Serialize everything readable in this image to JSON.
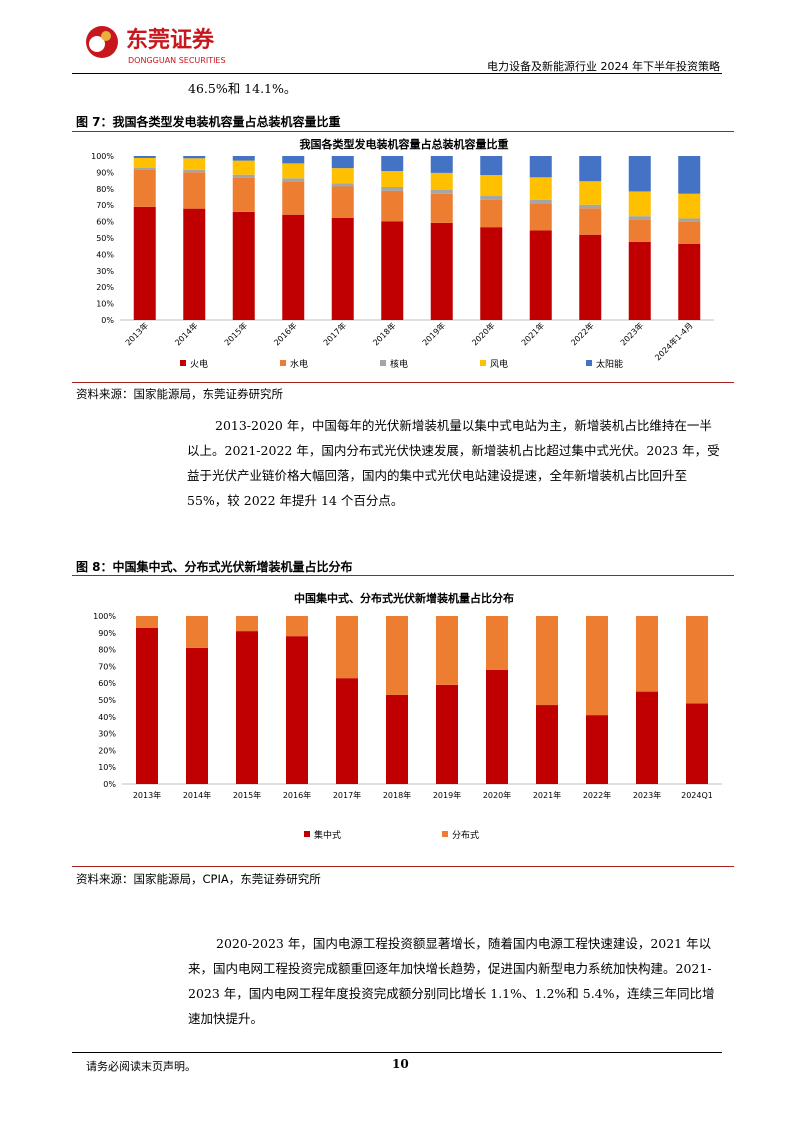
{
  "header": {
    "logo_cn": "东莞证券",
    "logo_en": "DONGGUAN SECURITIES",
    "report_title": "电力设备及新能源行业 2024 年下半年投资策略",
    "brand_color": "#c8161d"
  },
  "intro_fragment": "46.5%和 14.1%。",
  "figure7": {
    "caption": "图 7：我国各类型发电装机容量占总装机容量比重",
    "source": "资料来源：国家能源局，东莞证券研究所"
  },
  "paragraph1": "2013-2020 年，中国每年的光伏新增装机量以集中式电站为主，新增装机占比维持在一半以上。2021-2022 年，国内分布式光伏快速发展，新增装机占比超过集中式光伏。2023 年，受益于光伏产业链价格大幅回落，国内的集中式光伏电站建设提速，全年新增装机占比回升至 55%，较 2022 年提升 14 个百分点。",
  "figure8": {
    "caption": "图 8：中国集中式、分布式光伏新增装机量占比分布",
    "source": "资料来源：国家能源局，CPIA，东莞证券研究所"
  },
  "paragraph2": "2020-2023 年，国内电源工程投资额显著增长，随着国内电源工程快速建设，2021 年以来，国内电网工程投资完成额重回逐年加快增长趋势，促进国内新型电力系统加快构建。2021-2023 年，国内电网工程年度投资完成额分别同比增长 1.1%、1.2%和 5.4%，连续三年同比增速加快提升。",
  "footer": {
    "disclaimer": "请务必阅读末页声明。",
    "page_number": "10"
  },
  "chart_data": [
    {
      "type": "bar",
      "stacked": true,
      "title": "我国各类型发电装机容量占总装机容量比重",
      "categories": [
        "2013年",
        "2014年",
        "2015年",
        "2016年",
        "2017年",
        "2018年",
        "2019年",
        "2020年",
        "2021年",
        "2022年",
        "2023年",
        "2024年1-4月"
      ],
      "ylim": [
        0,
        100
      ],
      "yticks": [
        "0%",
        "10%",
        "20%",
        "30%",
        "40%",
        "50%",
        "60%",
        "70%",
        "80%",
        "90%",
        "100%"
      ],
      "legend_position": "bottom",
      "series": [
        {
          "name": "火电",
          "color": "#c00000",
          "values": [
            69.0,
            67.9,
            65.9,
            64.2,
            62.2,
            60.2,
            59.2,
            56.6,
            54.6,
            52.0,
            47.6,
            46.5
          ]
        },
        {
          "name": "水电",
          "color": "#ed7d31",
          "values": [
            22.5,
            22.2,
            20.9,
            20.2,
            19.2,
            18.5,
            17.8,
            16.8,
            16.4,
            16.1,
            13.8,
            13.5
          ]
        },
        {
          "name": "核电",
          "color": "#a5a5a5",
          "values": [
            1.2,
            1.5,
            1.8,
            2.0,
            2.0,
            2.4,
            2.3,
            2.2,
            2.2,
            2.2,
            1.9,
            1.9
          ]
        },
        {
          "name": "风电",
          "color": "#ffc000",
          "values": [
            6.1,
            7.0,
            8.6,
            9.1,
            9.2,
            9.7,
            10.4,
            12.8,
            13.8,
            14.3,
            15.1,
            15.1
          ]
        },
        {
          "name": "太阳能",
          "color": "#4472c4",
          "values": [
            1.2,
            1.4,
            2.8,
            4.5,
            7.4,
            9.2,
            10.3,
            11.6,
            13.0,
            15.4,
            21.6,
            23.0
          ]
        }
      ]
    },
    {
      "type": "bar",
      "stacked": true,
      "title": "中国集中式、分布式光伏新增装机量占比分布",
      "categories": [
        "2013年",
        "2014年",
        "2015年",
        "2016年",
        "2017年",
        "2018年",
        "2019年",
        "2020年",
        "2021年",
        "2022年",
        "2023年",
        "2024Q1"
      ],
      "ylim": [
        0,
        100
      ],
      "yticks": [
        "0%",
        "10%",
        "20%",
        "30%",
        "40%",
        "50%",
        "60%",
        "70%",
        "80%",
        "90%",
        "100%"
      ],
      "legend_position": "bottom",
      "series": [
        {
          "name": "集中式",
          "color": "#c00000",
          "values": [
            93,
            81,
            91,
            88,
            63,
            53,
            59,
            68,
            47,
            41,
            55,
            48
          ]
        },
        {
          "name": "分布式",
          "color": "#ed7d31",
          "values": [
            7,
            19,
            9,
            12,
            37,
            47,
            41,
            32,
            53,
            59,
            45,
            52
          ]
        }
      ]
    }
  ]
}
